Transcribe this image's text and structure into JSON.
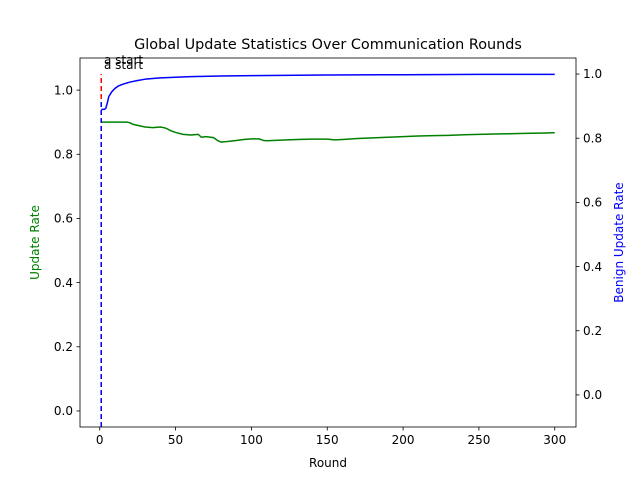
{
  "chart_data": {
    "type": "line",
    "title": "Global Update Statistics Over Communication Rounds",
    "xlabel": "Round",
    "ylabel_left": "Update Rate",
    "ylabel_right": "Benign Update Rate",
    "xlim": [
      -13,
      314
    ],
    "ylim_left": [
      -0.05,
      1.1
    ],
    "ylim_right": [
      -0.1,
      1.05
    ],
    "x_ticks": [
      0,
      50,
      100,
      150,
      200,
      250,
      300
    ],
    "y_ticks_left": [
      0.0,
      0.2,
      0.4,
      0.6,
      0.8,
      1.0
    ],
    "y_ticks_right": [
      0.0,
      0.2,
      0.4,
      0.6,
      0.8,
      1.0
    ],
    "colors": {
      "update_rate": "#008000",
      "benign_update_rate": "#0000ff",
      "marker_left": "#ff0000",
      "marker_right": "#0000ff",
      "left_label": "#008000",
      "right_label": "#0000ff"
    },
    "series": [
      {
        "axis": "left",
        "x": [
          1,
          5,
          10,
          15,
          18,
          20,
          22,
          25,
          28,
          30,
          35,
          40,
          43,
          45,
          47,
          50,
          55,
          60,
          65,
          67,
          70,
          75,
          78,
          80,
          85,
          90,
          95,
          100,
          105,
          108,
          110,
          120,
          130,
          140,
          150,
          155,
          160,
          170,
          180,
          190,
          200,
          210,
          220,
          230,
          240,
          250,
          260,
          270,
          280,
          290,
          300
        ],
        "y": [
          0.9,
          0.9,
          0.9,
          0.9,
          0.9,
          0.898,
          0.893,
          0.89,
          0.887,
          0.885,
          0.883,
          0.885,
          0.882,
          0.878,
          0.873,
          0.868,
          0.862,
          0.86,
          0.862,
          0.853,
          0.855,
          0.852,
          0.842,
          0.838,
          0.84,
          0.843,
          0.846,
          0.848,
          0.848,
          0.843,
          0.842,
          0.844,
          0.846,
          0.847,
          0.847,
          0.845,
          0.846,
          0.849,
          0.851,
          0.853,
          0.855,
          0.857,
          0.858,
          0.859,
          0.861,
          0.862,
          0.863,
          0.864,
          0.865,
          0.866,
          0.867
        ]
      },
      {
        "axis": "right",
        "x": [
          1,
          3,
          4,
          5,
          6,
          8,
          10,
          12,
          13,
          15,
          20,
          25,
          30,
          40,
          50,
          60,
          80,
          100,
          120,
          150,
          200,
          250,
          300
        ],
        "y": [
          0.89,
          0.89,
          0.893,
          0.91,
          0.93,
          0.945,
          0.955,
          0.962,
          0.964,
          0.968,
          0.975,
          0.98,
          0.984,
          0.988,
          0.99,
          0.992,
          0.994,
          0.995,
          0.996,
          0.997,
          0.998,
          0.999,
          0.999
        ]
      }
    ],
    "markers": [
      {
        "axis": "left",
        "x": 1,
        "y_from": -0.05,
        "y_to": 1.05,
        "label": "a start"
      },
      {
        "axis": "right",
        "x": 1,
        "y_from": -0.1,
        "y_to": 0.92,
        "label": "a start"
      }
    ]
  }
}
